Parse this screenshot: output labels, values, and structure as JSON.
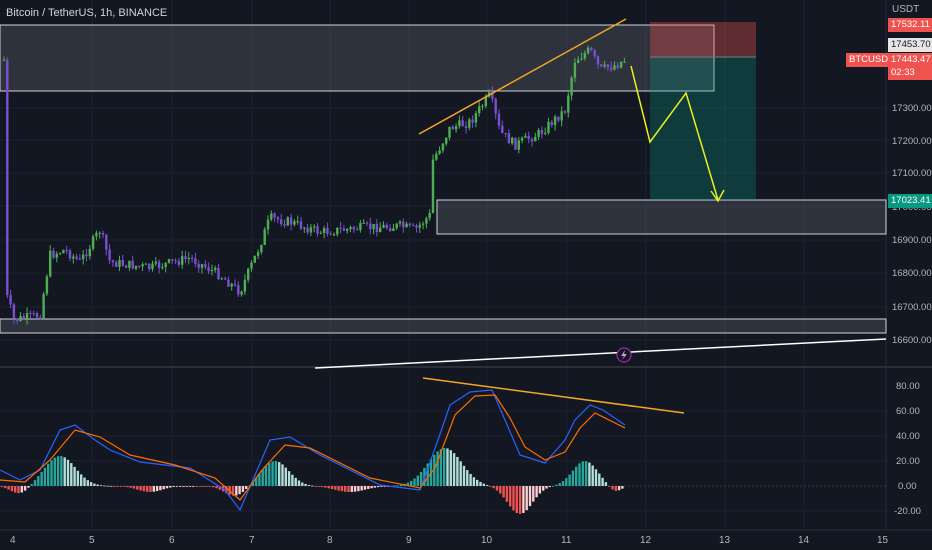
{
  "header": {
    "symbol_title": "Bitcoin / TetherUS",
    "interval": "1h",
    "exchange": "BINANCE",
    "separator": ", "
  },
  "price_axis": {
    "currency": "USDT",
    "ticks": [
      "17300.00",
      "17200.00",
      "17100.00",
      "17000.00",
      "16900.00",
      "16800.00",
      "16700.00",
      "16600.00"
    ],
    "tags": {
      "top_stop": "17532.11",
      "crosshair_price": "17453.70",
      "symbol": "BTCUSDT",
      "last_price": "17443.47",
      "countdown": "02:33",
      "target": "17023.41"
    }
  },
  "indicator_axis": {
    "ticks": [
      "80.00",
      "60.00",
      "40.00",
      "20.00",
      "0.00",
      "-20.00"
    ]
  },
  "time_axis": {
    "ticks": [
      "4",
      "5",
      "6",
      "7",
      "8",
      "9",
      "10",
      "11",
      "12",
      "13",
      "14",
      "15"
    ]
  },
  "colors": {
    "background": "#131722",
    "bull_candle": "#4caf50",
    "bear_candle": "#7b4fd1",
    "trendline": "#f5a623",
    "projection": "#e8f020",
    "stop_zone": "#ef5350",
    "target_zone": "#089981",
    "macd_line": "#2962ff",
    "signal_line": "#ff6d00"
  },
  "icons": {
    "event_marker": "lightning-icon"
  }
}
